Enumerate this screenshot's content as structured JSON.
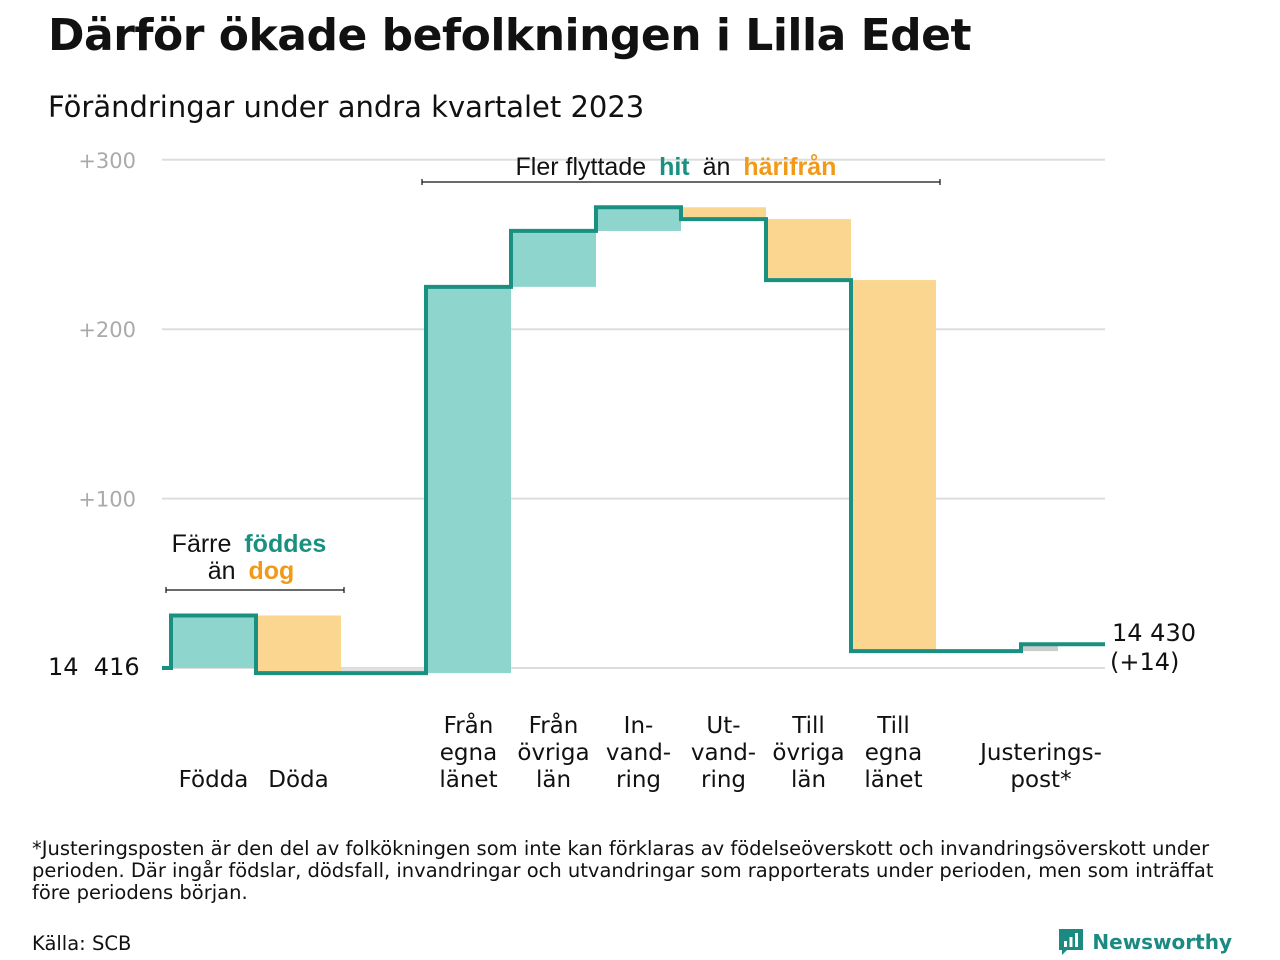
{
  "title": "Därför ökade befolkningen i Lilla Edet",
  "subtitle": "Förändringar under andra kvartalet 2023",
  "colors": {
    "increase": "#8ed5cd",
    "decrease": "#fad690",
    "line": "#1a9080",
    "grid": "#dddddd",
    "axis_text": "#aaaaaa",
    "accent_teal": "#1a9080",
    "accent_orange": "#f09a18",
    "adjustment": "#cccccc"
  },
  "chart_data": {
    "type": "waterfall",
    "start_value": 14416,
    "start_label": "14  416",
    "end_label_value": "14 430",
    "end_label_change": "(+14)",
    "y_ticks": [
      "+300",
      "+200",
      "+100"
    ],
    "ylim": [
      0,
      300
    ],
    "steps": [
      {
        "label": "Födda",
        "lines": [
          "Födda"
        ],
        "change": 31
      },
      {
        "label": "Döda",
        "lines": [
          "Döda"
        ],
        "change": -34
      },
      {
        "label": "Från egna länet",
        "lines": [
          "Från",
          "egna",
          "länet"
        ],
        "change": 228
      },
      {
        "label": "Från övriga län",
        "lines": [
          "Från",
          "övriga",
          "län"
        ],
        "change": 33
      },
      {
        "label": "In-vand-ring",
        "lines": [
          "In-",
          "vand-",
          "ring"
        ],
        "change": 14
      },
      {
        "label": "Ut-vand-ring",
        "lines": [
          "Ut-",
          "vand-",
          "ring"
        ],
        "change": -7
      },
      {
        "label": "Till övriga län",
        "lines": [
          "Till",
          "övriga",
          "län"
        ],
        "change": -36
      },
      {
        "label": "Till egna länet",
        "lines": [
          "Till",
          "egna",
          "länet"
        ],
        "change": -219
      },
      {
        "label": "Justeringspost*",
        "lines": [
          "Justerings-",
          "post*"
        ],
        "change": 4
      }
    ],
    "annotations": [
      {
        "prefix": "Fler flyttade",
        "word1": "hit",
        "middle": "än",
        "word2": "härifrån"
      },
      {
        "prefix": "Färre",
        "word1": "föddes",
        "middle": "än",
        "word2": "dog"
      }
    ]
  },
  "footnote": "*Justeringsposten är den del av folkökningen som inte kan förklaras av födelseöverskott och invandringsöverskott under perioden. Där ingår födslar, dödsfall, invandringar och utvandringar som rapporterats under perioden, men som inträffat före periodens början.",
  "source": "Källa: SCB",
  "brand": {
    "name": "Newsworthy",
    "icon": "newsworthy-logo-icon"
  }
}
